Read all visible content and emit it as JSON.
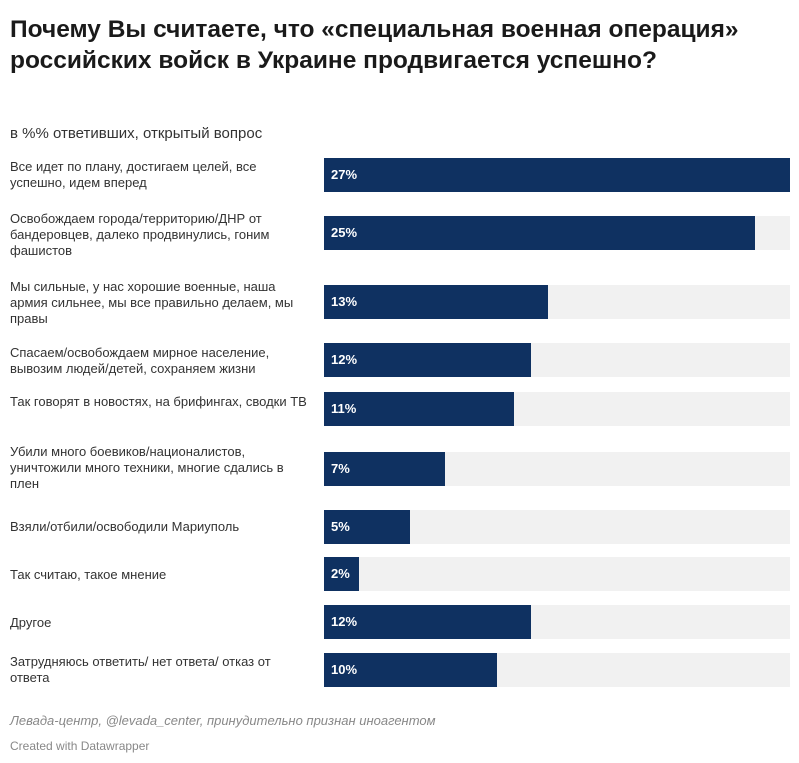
{
  "chart_data": {
    "type": "bar",
    "title": "Почему Вы считаете, что «специальная военная операция» российских войск в Украине продвигается успешно?",
    "subtitle": "в %% ответивших, открытый вопрос",
    "categories": [
      "Все идет по плану, достигаем целей, все успешно, идем вперед",
      "Освобождаем города/территорию/ДНР от бандеровцев, далеко продвинулись, гоним фашистов",
      "Мы сильные, у нас хорошие военные, наша армия сильнее, мы все правильно делаем, мы правы",
      "Спасаем/освобождаем мирное население, вывозим людей/детей, сохраняем жизни",
      "Так говорят в новостях, на брифингах, сводки ТВ",
      "Убили много боевиков/националистов, уничтожили много техники, многие сдались в плен",
      "Взяли/отбили/освободили Мариуполь",
      "Так считаю, такое мнение",
      "Другое",
      "Затрудняюсь ответить/ нет ответа/ отказ от ответа"
    ],
    "values": [
      27,
      25,
      13,
      12,
      11,
      7,
      5,
      2,
      12,
      10
    ],
    "value_labels": [
      "27%",
      "25%",
      "13%",
      "12%",
      "11%",
      "7%",
      "5%",
      "2%",
      "12%",
      "10%"
    ],
    "xlim": [
      0,
      27
    ],
    "bar_color": "#0f3161",
    "track_color": "#f1f1f1"
  },
  "footer": {
    "source": "Левада-центр, @levada_center, принудительно признан иноагентом",
    "credit": "Created with Datawrapper"
  }
}
